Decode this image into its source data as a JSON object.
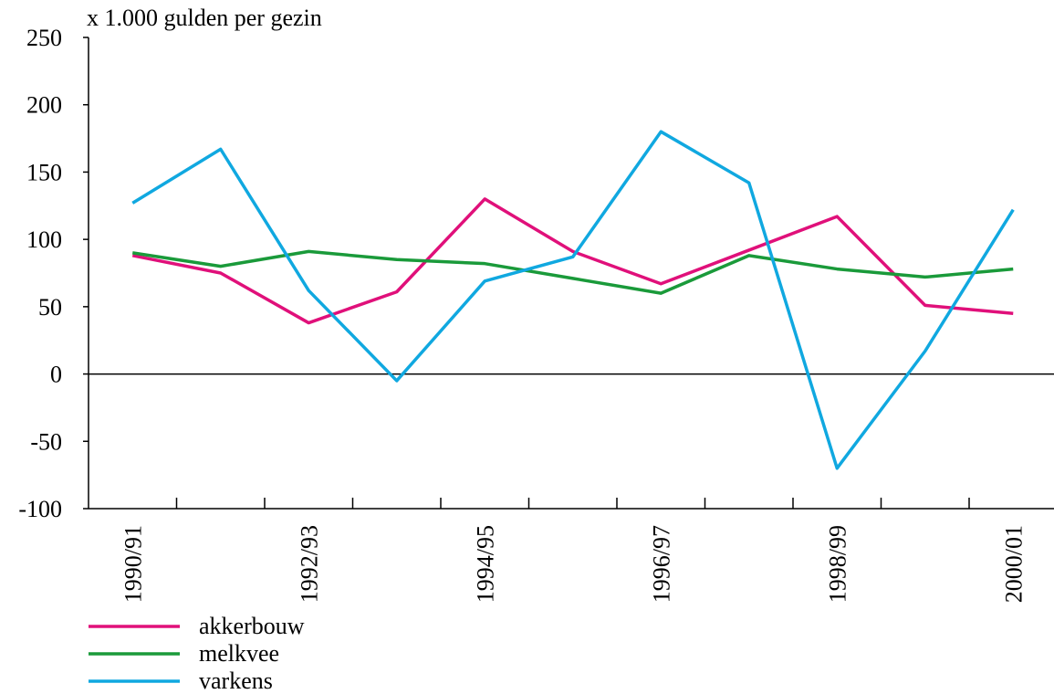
{
  "chart_data": {
    "type": "line",
    "y_label": "x 1.000 gulden per gezin",
    "categories": [
      "1990/91",
      null,
      "1992/93",
      null,
      "1994/95",
      null,
      "1996/97",
      null,
      "1998/99",
      null,
      "2000/01"
    ],
    "series": [
      {
        "name": "akkerbouw",
        "color": "#e0107a",
        "values": [
          88,
          75,
          38,
          61,
          130,
          91,
          67,
          92,
          117,
          51,
          45
        ]
      },
      {
        "name": "melkvee",
        "color": "#1a9a3a",
        "values": [
          90,
          80,
          91,
          85,
          82,
          71,
          60,
          88,
          78,
          72,
          78
        ]
      },
      {
        "name": "varkens",
        "color": "#10a8e0",
        "values": [
          127,
          167,
          62,
          -5,
          69,
          87,
          180,
          142,
          -70,
          17,
          122
        ]
      }
    ],
    "ylim": [
      -100,
      250
    ],
    "yticks": [
      -100,
      -50,
      0,
      50,
      100,
      150,
      200,
      250
    ],
    "legend": "bottom-left"
  }
}
